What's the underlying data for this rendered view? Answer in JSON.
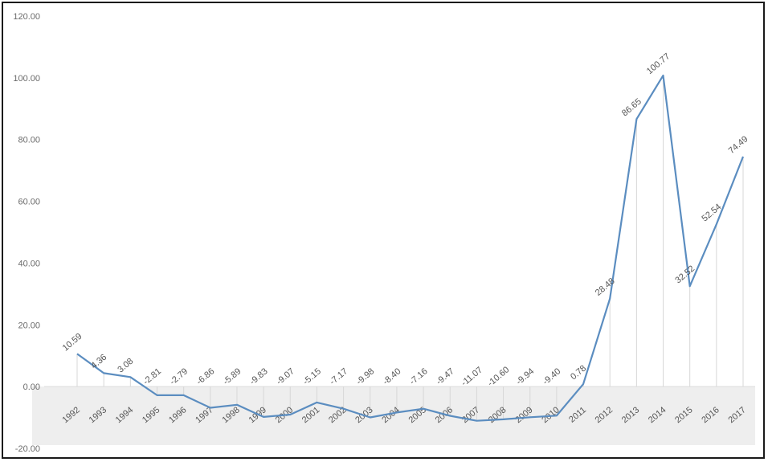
{
  "chart_data": {
    "type": "line",
    "title": "",
    "xlabel": "",
    "ylabel": "",
    "ylim": [
      -20,
      120
    ],
    "y_ticks": [
      "120.00",
      "100.00",
      "80.00",
      "60.00",
      "40.00",
      "20.00",
      "0.00",
      "-20.00"
    ],
    "y_tick_values": [
      120,
      100,
      80,
      60,
      40,
      20,
      0,
      -20
    ],
    "categories": [
      "1992",
      "1993",
      "1994",
      "1995",
      "1996",
      "1997",
      "1998",
      "1999",
      "2000",
      "2001",
      "2002",
      "2003",
      "2004",
      "2005",
      "2006",
      "2007",
      "2008",
      "2009",
      "2010",
      "2011",
      "2012",
      "2013",
      "2014",
      "2015",
      "2016",
      "2017"
    ],
    "values": [
      10.59,
      4.36,
      3.08,
      -2.81,
      -2.79,
      -6.86,
      -5.89,
      -9.83,
      -9.07,
      -5.15,
      -7.17,
      -9.98,
      -8.4,
      -7.16,
      -9.47,
      -11.07,
      -10.6,
      -9.94,
      -9.4,
      0.78,
      28.48,
      86.65,
      100.77,
      32.52,
      52.54,
      74.49
    ],
    "data_labels": [
      "10.59",
      "4.36",
      "3.08",
      "-2.81",
      "-2.79",
      "-6.86",
      "-5.89",
      "-9.83",
      "-9.07",
      "-5.15",
      "-7.17",
      "-9.98",
      "-8.40",
      "-7.16",
      "-9.47",
      "-11.07",
      "-10.60",
      "-9.94",
      "-9.40",
      "0.78",
      "28.48",
      "86.65",
      "100.77",
      "32.52",
      "52.54",
      "74.49"
    ],
    "grid": false,
    "legend": "none",
    "colors": {
      "line": "#5b8dc0",
      "drop_line": "#d7d7d7",
      "negative_band": "#eeeeee"
    }
  }
}
